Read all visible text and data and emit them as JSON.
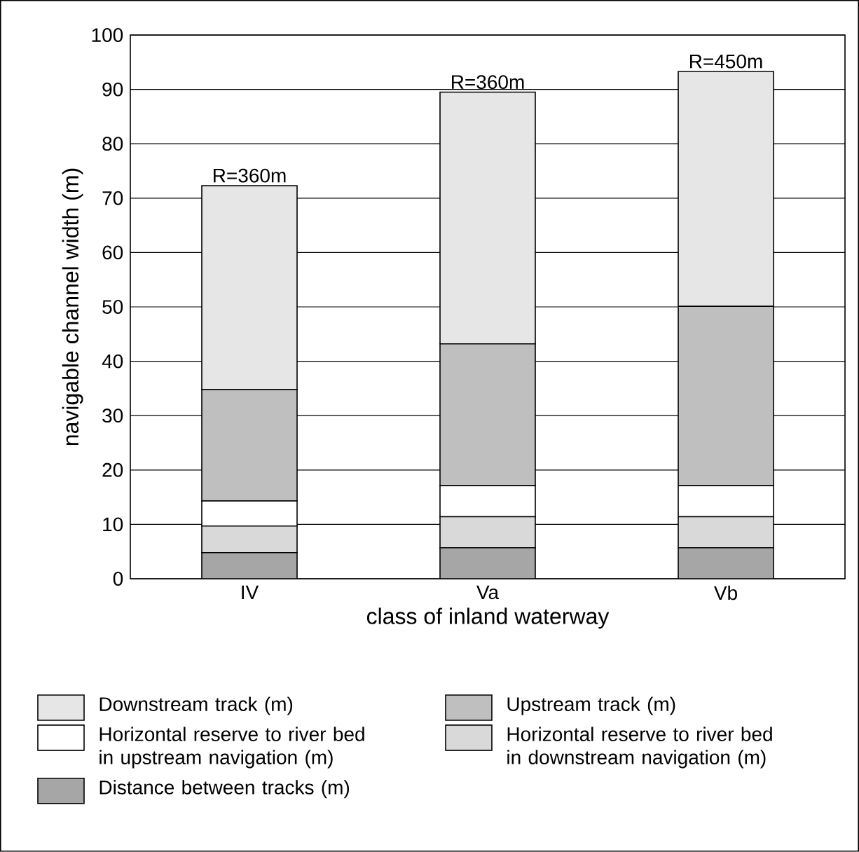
{
  "chart_data": {
    "type": "bar",
    "stacked": true,
    "xlabel": "class of inland waterway",
    "ylabel": "navigable channel width (m)",
    "categories": [
      "IV",
      "Va",
      "Vb"
    ],
    "ylim": [
      0,
      100
    ],
    "yticks": [
      0,
      10,
      20,
      30,
      40,
      50,
      60,
      70,
      80,
      90,
      100
    ],
    "grid": "y",
    "legend": "bottom",
    "series": [
      {
        "name": "Distance between tracks (m)",
        "color": "#a6a6a6",
        "values": [
          4.8,
          5.7,
          5.7
        ]
      },
      {
        "name": "Horizontal reserve to river bed in downstream navigation (m)",
        "color": "#d9d9d9",
        "values": [
          4.9,
          5.7,
          5.7
        ]
      },
      {
        "name": "Horizontal reserve to river bed in upstream navigation (m)",
        "color": "#ffffff",
        "values": [
          4.6,
          5.7,
          5.7
        ]
      },
      {
        "name": "Upstream track (m)",
        "color": "#bfbfbf",
        "values": [
          20.5,
          26.1,
          33.0
        ]
      },
      {
        "name": "Downstream track (m)",
        "color": "#e6e6e6",
        "values": [
          37.5,
          46.3,
          43.2
        ]
      }
    ],
    "annotations": [
      {
        "text": "R=360m",
        "x": "IV",
        "y": 72.3
      },
      {
        "text": "R=360m",
        "x": "Va",
        "y": 89.5
      },
      {
        "text": "R=450m",
        "x": "Vb",
        "y": 93.3
      }
    ]
  }
}
